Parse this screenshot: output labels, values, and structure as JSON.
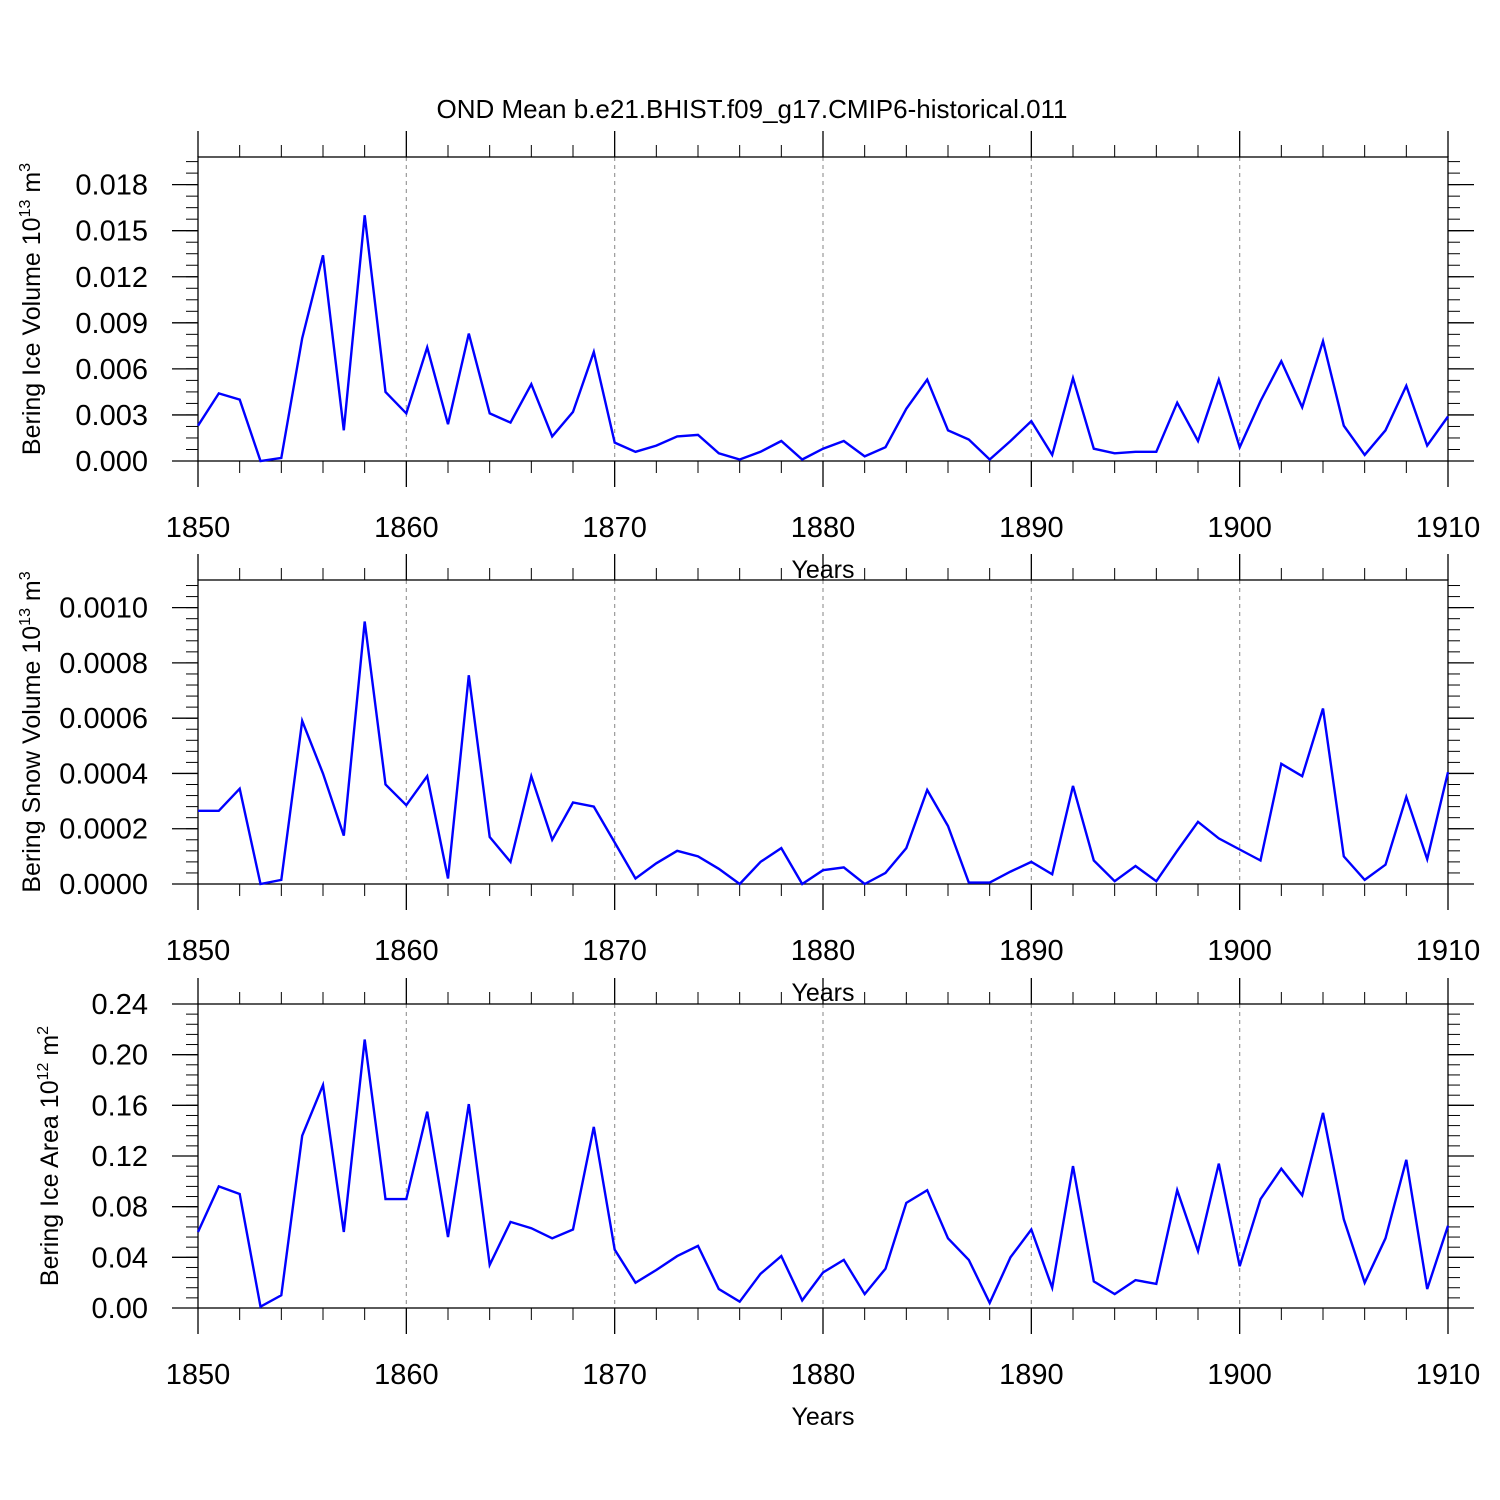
{
  "title": "OND Mean b.e21.BHIST.f09_g17.CMIP6-historical.011",
  "line_color": "#0000ff",
  "grid_color": "#999999",
  "chart_data": [
    {
      "type": "line",
      "ylabel": {
        "text": "Bering Ice Volume 10",
        "sup": "13",
        "unit": " m",
        "unit_sup": "3"
      },
      "xlabel": "Years",
      "xlim": [
        1850,
        1910
      ],
      "ylim": [
        0.0,
        0.0198
      ],
      "y_ticks": [
        "0.000",
        "0.003",
        "0.006",
        "0.009",
        "0.012",
        "0.015",
        "0.018"
      ],
      "y_tick_values": [
        0.0,
        0.003,
        0.006,
        0.009,
        0.012,
        0.015,
        0.018
      ],
      "x_ticks": [
        "1850",
        "1860",
        "1870",
        "1880",
        "1890",
        "1900",
        "1910"
      ],
      "x_tick_values": [
        1850,
        1860,
        1870,
        1880,
        1890,
        1900,
        1910
      ],
      "minor_step": 0.00075,
      "series": [
        {
          "name": "Bering Ice Volume",
          "x": [
            1850,
            1851,
            1852,
            1853,
            1854,
            1855,
            1856,
            1857,
            1858,
            1859,
            1860,
            1861,
            1862,
            1863,
            1864,
            1865,
            1866,
            1867,
            1868,
            1869,
            1870,
            1871,
            1872,
            1873,
            1874,
            1875,
            1876,
            1877,
            1878,
            1879,
            1880,
            1881,
            1882,
            1883,
            1884,
            1885,
            1886,
            1887,
            1888,
            1889,
            1890,
            1891,
            1892,
            1893,
            1894,
            1895,
            1896,
            1897,
            1898,
            1899,
            1900,
            1901,
            1902,
            1903,
            1904,
            1905,
            1906,
            1907,
            1908,
            1909,
            1910
          ],
          "values": [
            0.0023,
            0.0044,
            0.004,
            0.0,
            0.0002,
            0.008,
            0.0134,
            0.002,
            0.016,
            0.0045,
            0.0031,
            0.0074,
            0.0024,
            0.0083,
            0.0031,
            0.0025,
            0.005,
            0.0016,
            0.0032,
            0.0071,
            0.0012,
            0.0006,
            0.001,
            0.0016,
            0.0017,
            0.0005,
            0.0001,
            0.0006,
            0.0013,
            0.0001,
            0.0008,
            0.0013,
            0.0003,
            0.0009,
            0.0034,
            0.0053,
            0.002,
            0.0014,
            0.0001,
            0.0013,
            0.0026,
            0.0004,
            0.0054,
            0.0008,
            0.0005,
            0.0006,
            0.0006,
            0.0038,
            0.0013,
            0.0053,
            0.0009,
            0.0039,
            0.0065,
            0.0035,
            0.0078,
            0.0023,
            0.0004,
            0.002,
            0.0049,
            0.001,
            0.0029
          ]
        }
      ]
    },
    {
      "type": "line",
      "ylabel": {
        "text": "Bering Snow Volume 10",
        "sup": "13",
        "unit": " m",
        "unit_sup": "3"
      },
      "xlabel": "Years",
      "xlim": [
        1850,
        1910
      ],
      "ylim": [
        0.0,
        0.0011
      ],
      "y_ticks": [
        "0.0000",
        "0.0002",
        "0.0004",
        "0.0006",
        "0.0008",
        "0.0010"
      ],
      "y_tick_values": [
        0.0,
        0.0002,
        0.0004,
        0.0006,
        0.0008,
        0.001
      ],
      "x_ticks": [
        "1850",
        "1860",
        "1870",
        "1880",
        "1890",
        "1900",
        "1910"
      ],
      "x_tick_values": [
        1850,
        1860,
        1870,
        1880,
        1890,
        1900,
        1910
      ],
      "minor_step": 4e-05,
      "series": [
        {
          "name": "Bering Snow Volume",
          "x": [
            1850,
            1851,
            1852,
            1853,
            1854,
            1855,
            1856,
            1857,
            1858,
            1859,
            1860,
            1861,
            1862,
            1863,
            1864,
            1865,
            1866,
            1867,
            1868,
            1869,
            1870,
            1871,
            1872,
            1873,
            1874,
            1875,
            1876,
            1877,
            1878,
            1879,
            1880,
            1881,
            1882,
            1883,
            1884,
            1885,
            1886,
            1887,
            1888,
            1889,
            1890,
            1891,
            1892,
            1893,
            1894,
            1895,
            1896,
            1897,
            1898,
            1899,
            1900,
            1901,
            1902,
            1903,
            1904,
            1905,
            1906,
            1907,
            1908,
            1909,
            1910
          ],
          "values": [
            0.000265,
            0.000265,
            0.000345,
            0.0,
            1.5e-05,
            0.00059,
            0.0004,
            0.000175,
            0.00095,
            0.00036,
            0.000285,
            0.00039,
            2e-05,
            0.000755,
            0.00017,
            8e-05,
            0.00039,
            0.00016,
            0.000295,
            0.00028,
            0.00015,
            2e-05,
            7.5e-05,
            0.00012,
            0.0001,
            5.5e-05,
            0.0,
            8e-05,
            0.00013,
            0.0,
            5e-05,
            6e-05,
            0.0,
            4e-05,
            0.00013,
            0.00034,
            0.00021,
            5e-06,
            5e-06,
            4.5e-05,
            8e-05,
            3.5e-05,
            0.000355,
            8.5e-05,
            1e-05,
            6.5e-05,
            1e-05,
            0.00012,
            0.000225,
            0.000165,
            0.000125,
            8.5e-05,
            0.000435,
            0.00039,
            0.000635,
            0.0001,
            1.5e-05,
            7e-05,
            0.000315,
            9e-05,
            0.000405
          ]
        }
      ]
    },
    {
      "type": "line",
      "ylabel": {
        "text": "Bering Ice Area 10",
        "sup": "12",
        "unit": " m",
        "unit_sup": "2"
      },
      "xlabel": "Years",
      "xlim": [
        1850,
        1910
      ],
      "ylim": [
        0.0,
        0.24
      ],
      "y_ticks": [
        "0.00",
        "0.04",
        "0.08",
        "0.12",
        "0.16",
        "0.20",
        "0.24"
      ],
      "y_tick_values": [
        0.0,
        0.04,
        0.08,
        0.12,
        0.16,
        0.2,
        0.24
      ],
      "x_ticks": [
        "1850",
        "1860",
        "1870",
        "1880",
        "1890",
        "1900",
        "1910"
      ],
      "x_tick_values": [
        1850,
        1860,
        1870,
        1880,
        1890,
        1900,
        1910
      ],
      "minor_step": 0.008,
      "series": [
        {
          "name": "Bering Ice Area",
          "x": [
            1850,
            1851,
            1852,
            1853,
            1854,
            1855,
            1856,
            1857,
            1858,
            1859,
            1860,
            1861,
            1862,
            1863,
            1864,
            1865,
            1866,
            1867,
            1868,
            1869,
            1870,
            1871,
            1872,
            1873,
            1874,
            1875,
            1876,
            1877,
            1878,
            1879,
            1880,
            1881,
            1882,
            1883,
            1884,
            1885,
            1886,
            1887,
            1888,
            1889,
            1890,
            1891,
            1892,
            1893,
            1894,
            1895,
            1896,
            1897,
            1898,
            1899,
            1900,
            1901,
            1902,
            1903,
            1904,
            1905,
            1906,
            1907,
            1908,
            1909,
            1910
          ],
          "values": [
            0.06,
            0.096,
            0.09,
            0.001,
            0.01,
            0.136,
            0.176,
            0.06,
            0.212,
            0.086,
            0.086,
            0.155,
            0.056,
            0.161,
            0.034,
            0.068,
            0.063,
            0.055,
            0.062,
            0.143,
            0.046,
            0.02,
            0.03,
            0.041,
            0.049,
            0.015,
            0.005,
            0.027,
            0.041,
            0.006,
            0.028,
            0.038,
            0.011,
            0.031,
            0.083,
            0.093,
            0.055,
            0.038,
            0.004,
            0.04,
            0.062,
            0.016,
            0.112,
            0.021,
            0.011,
            0.022,
            0.019,
            0.093,
            0.045,
            0.114,
            0.033,
            0.086,
            0.11,
            0.089,
            0.154,
            0.07,
            0.02,
            0.055,
            0.117,
            0.015,
            0.065
          ]
        }
      ]
    }
  ]
}
